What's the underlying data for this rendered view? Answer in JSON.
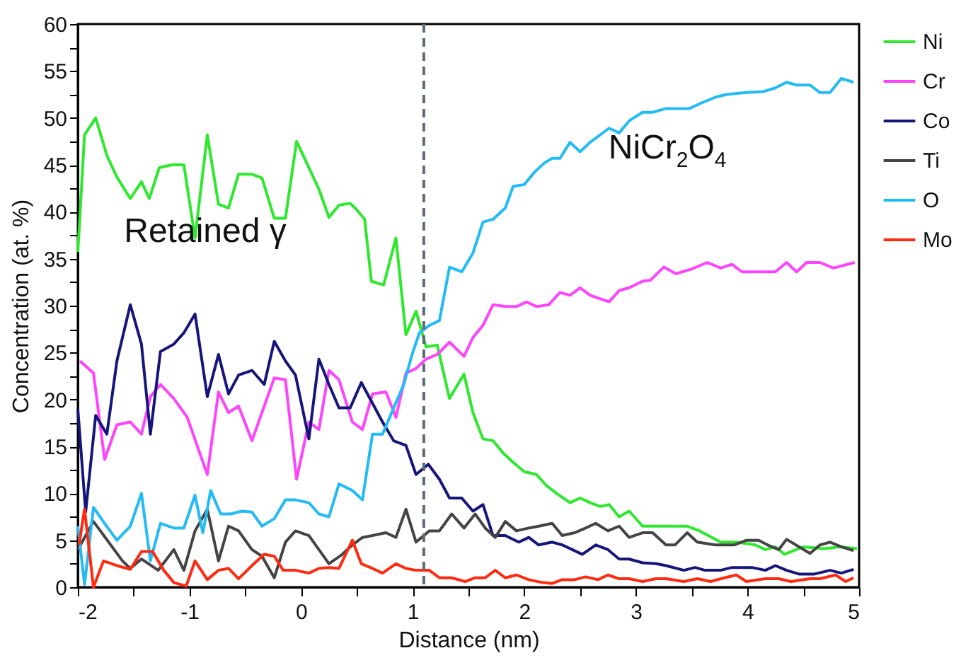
{
  "chart_data": {
    "type": "line",
    "xlabel": "Distance (nm)",
    "ylabel": "Concentration (at. %)",
    "xlim": [
      -2,
      5
    ],
    "xticks": [
      -2,
      {
        "value": -1.5,
        "label": null
      },
      -1,
      {
        "value": -0.5,
        "label": null
      },
      0,
      {
        "value": 0.5,
        "label": null
      },
      1,
      {
        "value": 1.5,
        "label": null
      },
      2,
      {
        "value": 2.5,
        "label": null
      },
      3,
      {
        "value": 3.5,
        "label": null
      },
      4,
      {
        "value": 4.5,
        "label": null
      },
      5
    ],
    "ylim": [
      0,
      60
    ],
    "yticks": [
      0,
      {
        "value": 2.5,
        "label": null
      },
      5,
      {
        "value": 7.5,
        "label": null
      },
      10,
      {
        "value": 12.5,
        "label": null
      },
      15,
      {
        "value": 17.5,
        "label": null
      },
      20,
      {
        "value": 22.5,
        "label": null
      },
      25,
      {
        "value": 27.5,
        "label": null
      },
      30,
      {
        "value": 32.5,
        "label": null
      },
      35,
      {
        "value": 37.5,
        "label": null
      },
      40,
      {
        "value": 42.5,
        "label": null
      },
      45,
      {
        "value": 47.5,
        "label": null
      },
      50,
      {
        "value": 52.5,
        "label": null
      },
      55,
      {
        "value": 57.5,
        "label": null
      },
      60
    ],
    "legend": "right",
    "annotations": [
      "Retained γ",
      "NiCr$_{2}$O$_{4}$"
    ],
    "ref_lines": [
      {
        "axis": "x",
        "value": 1.1,
        "color": "#5c6b7a",
        "line_style": "dashed"
      }
    ],
    "series": [
      {
        "name": "Ni",
        "color": "#2ee82e",
        "x": [
          -2,
          -1.94,
          -1.84,
          -1.74,
          -1.65,
          -1.53,
          -1.43,
          -1.36,
          -1.27,
          -1.16,
          -1.05,
          -0.95,
          -0.84,
          -0.74,
          -0.65,
          -0.56,
          -0.44,
          -0.35,
          -0.24,
          -0.14,
          -0.04,
          0.09,
          0.16,
          0.25,
          0.34,
          0.44,
          0.5,
          0.57,
          0.63,
          0.74,
          0.85,
          0.94,
          1.03,
          1.12,
          1.22,
          1.33,
          1.46,
          1.54,
          1.63,
          1.72,
          1.81,
          1.9,
          2.0,
          2.11,
          2.2,
          2.29,
          2.41,
          2.5,
          2.59,
          2.68,
          2.76,
          2.85,
          2.94,
          3.06,
          3.27,
          3.46,
          3.57,
          3.76,
          3.9,
          4.07,
          4.16,
          4.25,
          4.33,
          4.5,
          4.69,
          4.83,
          4.98
        ],
        "values": [
          35.7,
          48.2,
          50,
          46,
          43.7,
          41.4,
          43.2,
          41.4,
          44.7,
          45,
          45,
          37.2,
          48.2,
          40.8,
          40.4,
          44,
          44,
          43.6,
          39.3,
          39.3,
          47.5,
          44.2,
          42.4,
          39.4,
          40.7,
          40.9,
          40.2,
          39.2,
          32.6,
          32.2,
          37.2,
          26.9,
          29.4,
          25.6,
          25.8,
          20.1,
          22.7,
          18.6,
          15.8,
          15.6,
          14.3,
          13.3,
          12.3,
          12,
          10.8,
          10,
          9,
          9.5,
          9,
          8.6,
          8.8,
          7.5,
          8.1,
          6.5,
          6.5,
          6.5,
          6,
          4.8,
          4.8,
          4.5,
          4,
          4.3,
          3.5,
          4.3,
          4.1,
          4.3,
          4.1
        ]
      },
      {
        "name": "Cr",
        "color": "#ff44ff",
        "x": [
          -1.98,
          -1.86,
          -1.76,
          -1.65,
          -1.53,
          -1.43,
          -1.35,
          -1.26,
          -1.14,
          -1.02,
          -0.84,
          -0.74,
          -0.65,
          -0.56,
          -0.44,
          -0.24,
          -0.14,
          -0.04,
          0.07,
          0.16,
          0.25,
          0.34,
          0.46,
          0.55,
          0.64,
          0.76,
          0.85,
          0.94,
          1.03,
          1.12,
          1.22,
          1.33,
          1.46,
          1.54,
          1.63,
          1.72,
          1.83,
          1.93,
          2.02,
          2.11,
          2.22,
          2.32,
          2.41,
          2.5,
          2.59,
          2.76,
          2.85,
          2.94,
          3.06,
          3.13,
          3.25,
          3.36,
          3.5,
          3.64,
          3.76,
          3.86,
          3.95,
          4.25,
          4.35,
          4.44,
          4.53,
          4.65,
          4.77,
          4.96
        ],
        "values": [
          24.1,
          22.8,
          13.6,
          17.3,
          17.6,
          16.3,
          20.3,
          21.6,
          20.1,
          18.1,
          12,
          20.8,
          18.6,
          19.3,
          15.6,
          22.3,
          22.1,
          11.5,
          17.6,
          16.8,
          23.1,
          22.1,
          17.6,
          16.8,
          20.6,
          20.8,
          18.1,
          22.8,
          23.3,
          24.3,
          24.8,
          26.1,
          24.6,
          26.6,
          27.9,
          30.1,
          29.9,
          29.9,
          30.4,
          29.9,
          30.1,
          31.4,
          31.1,
          31.9,
          31.1,
          30.4,
          31.6,
          31.9,
          32.6,
          32.7,
          34.1,
          33.4,
          33.9,
          34.6,
          34,
          34.4,
          33.6,
          33.6,
          34.6,
          33.6,
          34.6,
          34.6,
          34,
          34.6
        ]
      },
      {
        "name": "Co",
        "color": "#16167a",
        "x": [
          -2,
          -1.93,
          -1.84,
          -1.74,
          -1.65,
          -1.53,
          -1.43,
          -1.35,
          -1.26,
          -1.14,
          -1.05,
          -0.95,
          -0.84,
          -0.74,
          -0.65,
          -0.56,
          -0.44,
          -0.33,
          -0.24,
          -0.14,
          -0.05,
          0.07,
          0.16,
          0.25,
          0.34,
          0.44,
          0.54,
          0.64,
          0.73,
          0.83,
          0.94,
          1.03,
          1.14,
          1.24,
          1.33,
          1.44,
          1.54,
          1.63,
          1.72,
          1.83,
          1.95,
          2.04,
          2.13,
          2.25,
          2.34,
          2.43,
          2.52,
          2.64,
          2.75,
          2.85,
          2.94,
          3.06,
          3.18,
          3.27,
          3.43,
          3.53,
          3.62,
          3.76,
          3.86,
          4.04,
          4.16,
          4.25,
          4.35,
          4.46,
          4.6,
          4.74,
          4.84,
          4.95
        ],
        "values": [
          19,
          8,
          18.3,
          16.3,
          24.1,
          30.1,
          25.9,
          16.3,
          25.1,
          25.9,
          27.1,
          29.1,
          20.3,
          24.8,
          20.6,
          22.6,
          23.1,
          21.6,
          26.2,
          24.1,
          22.6,
          15.8,
          24.3,
          21.6,
          19.1,
          19.1,
          21.8,
          19.6,
          17.6,
          15.6,
          15.1,
          12,
          13.1,
          11.5,
          9.5,
          9.5,
          8.1,
          8.8,
          5.5,
          5.5,
          4.8,
          5.3,
          4.5,
          4.8,
          4.5,
          4,
          3.5,
          4.5,
          4,
          3,
          3,
          2.6,
          2.5,
          2.3,
          1.8,
          2.1,
          1.8,
          1.8,
          2.1,
          2.1,
          1.8,
          2.3,
          1.8,
          1.4,
          1.4,
          1.8,
          1.5,
          1.9
        ]
      },
      {
        "name": "Ti",
        "color": "#444444",
        "x": [
          -2,
          -1.86,
          -1.6,
          -1.53,
          -1.43,
          -1.28,
          -1.14,
          -1.05,
          -0.95,
          -0.84,
          -0.74,
          -0.65,
          -0.56,
          -0.44,
          -0.35,
          -0.24,
          -0.14,
          -0.05,
          0.07,
          0.16,
          0.25,
          0.37,
          0.46,
          0.55,
          0.64,
          0.76,
          0.85,
          0.94,
          1.03,
          1.15,
          1.24,
          1.35,
          1.46,
          1.56,
          1.65,
          1.74,
          1.83,
          1.93,
          2.04,
          2.13,
          2.25,
          2.34,
          2.45,
          2.55,
          2.64,
          2.75,
          2.85,
          2.94,
          3.06,
          3.15,
          3.27,
          3.35,
          3.46,
          3.55,
          3.71,
          3.88,
          3.99,
          4.1,
          4.18,
          4.28,
          4.35,
          4.56,
          4.65,
          4.74,
          4.84,
          4.95
        ],
        "values": [
          4,
          7,
          2.8,
          2,
          3,
          1.8,
          4,
          1.8,
          6,
          8.3,
          2.8,
          6.5,
          6,
          4,
          3.3,
          1,
          4.8,
          6,
          5.5,
          4,
          2.5,
          3.5,
          4.5,
          5.3,
          5.5,
          5.8,
          5.3,
          8.3,
          4.8,
          6,
          6,
          7.8,
          6.3,
          7.8,
          6.3,
          5.3,
          7,
          6,
          6.3,
          6.5,
          6.8,
          5.5,
          5.8,
          6.3,
          6.8,
          6,
          6.5,
          5.3,
          5.8,
          5.8,
          4.5,
          4.5,
          5.8,
          4.8,
          4.5,
          4.5,
          5,
          5,
          4.5,
          4,
          5.1,
          3.6,
          4.5,
          4.8,
          4.3,
          3.9
        ]
      },
      {
        "name": "O",
        "color": "#22bbf5",
        "x": [
          -2,
          -1.94,
          -1.86,
          -1.76,
          -1.65,
          -1.53,
          -1.43,
          -1.35,
          -1.26,
          -1.14,
          -1.05,
          -0.95,
          -0.88,
          -0.81,
          -0.72,
          -0.63,
          -0.53,
          -0.44,
          -0.35,
          -0.24,
          -0.14,
          -0.05,
          0.07,
          0.16,
          0.25,
          0.34,
          0.46,
          0.55,
          0.64,
          0.73,
          0.83,
          0.92,
          0.99,
          1.06,
          1.15,
          1.24,
          1.33,
          1.44,
          1.54,
          1.63,
          1.72,
          1.83,
          1.9,
          2.0,
          2.09,
          2.18,
          2.25,
          2.32,
          2.41,
          2.5,
          2.59,
          2.76,
          2.85,
          2.94,
          3.06,
          3.15,
          3.27,
          3.48,
          3.57,
          3.71,
          3.81,
          3.99,
          4.14,
          4.25,
          4.35,
          4.44,
          4.56,
          4.65,
          4.74,
          4.84,
          4.95
        ],
        "values": [
          6.5,
          0.3,
          8.5,
          6.8,
          5,
          6.5,
          10,
          2.8,
          6.8,
          6.3,
          6.3,
          9.8,
          5.8,
          10.3,
          7.8,
          7.8,
          8.1,
          8,
          6.5,
          7.3,
          9.3,
          9.3,
          9,
          7.8,
          7.5,
          11,
          10.3,
          9.3,
          16.3,
          16.3,
          19.1,
          21.6,
          24.6,
          27.1,
          27.9,
          28.4,
          34.1,
          33.6,
          35.6,
          38.9,
          39.2,
          40.4,
          42.7,
          42.9,
          44.2,
          45.2,
          45.7,
          45.7,
          47.4,
          46.4,
          47.4,
          48.9,
          48.4,
          49.7,
          50.6,
          50.6,
          51,
          51,
          51.5,
          52.2,
          52.5,
          52.7,
          52.8,
          53.2,
          53.8,
          53.5,
          53.5,
          52.7,
          52.7,
          54.2,
          53.8
        ]
      },
      {
        "name": "Mo",
        "color": "#ff2a10",
        "x": [
          -1.99,
          -1.94,
          -1.86,
          -1.77,
          -1.65,
          -1.53,
          -1.43,
          -1.33,
          -1.23,
          -1.14,
          -1.03,
          -0.95,
          -0.84,
          -0.74,
          -0.65,
          -0.56,
          -0.44,
          -0.33,
          -0.24,
          -0.16,
          -0.05,
          0.07,
          0.16,
          0.25,
          0.34,
          0.46,
          0.54,
          0.64,
          0.73,
          0.85,
          0.94,
          1.03,
          1.15,
          1.24,
          1.35,
          1.47,
          1.56,
          1.65,
          1.74,
          1.83,
          1.93,
          2.04,
          2.16,
          2.25,
          2.34,
          2.45,
          2.55,
          2.66,
          2.75,
          2.85,
          2.94,
          3.06,
          3.18,
          3.27,
          3.43,
          3.55,
          3.67,
          3.76,
          3.9,
          3.99,
          4.16,
          4.28,
          4.39,
          4.56,
          4.65,
          4.79,
          4.88,
          4.95
        ],
        "values": [
          4.5,
          8.3,
          0,
          2.8,
          2.3,
          1.9,
          3.8,
          3.8,
          1.8,
          0.5,
          0.1,
          2.8,
          0.8,
          1.8,
          2,
          0.9,
          2.3,
          3.5,
          3.3,
          1.8,
          1.8,
          1.5,
          2,
          2.1,
          2,
          5,
          2.5,
          2,
          1.5,
          2.5,
          2,
          1.8,
          1.8,
          1,
          1,
          0.6,
          1,
          1,
          1.8,
          1,
          1.3,
          0.8,
          0.5,
          0.4,
          0.8,
          0.8,
          1.1,
          0.8,
          1.3,
          0.9,
          0.9,
          0.6,
          0.9,
          0.9,
          0.6,
          0.9,
          0.6,
          0.9,
          1.3,
          0.6,
          0.9,
          0.9,
          0.6,
          0.9,
          0.9,
          1.3,
          0.6,
          1
        ]
      }
    ]
  }
}
